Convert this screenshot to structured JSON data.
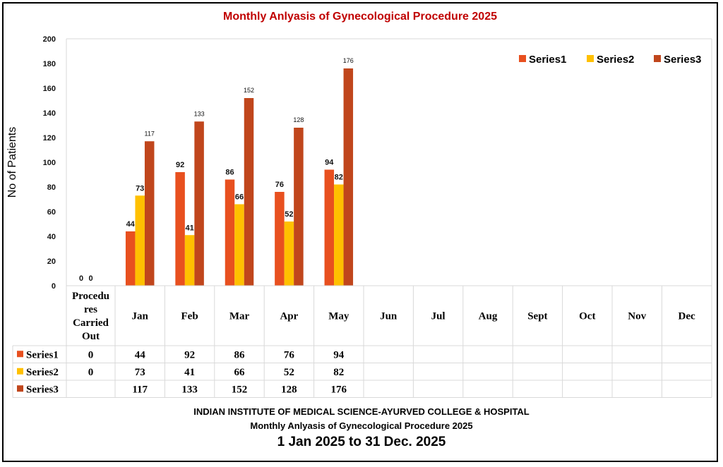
{
  "chart_data": {
    "type": "bar",
    "title": "Monthly Anlyasis of Gynecological Procedure  2025",
    "ylabel": "No of Patients",
    "ylim": [
      0,
      200
    ],
    "yticks": [
      "0",
      "20",
      "40",
      "60",
      "80",
      "100",
      "120",
      "140",
      "160",
      "180",
      "200"
    ],
    "legend_position": "top-right",
    "categories": [
      "Procedu\nres\nCarried\nOut",
      "Jan",
      "Feb",
      "Mar",
      "Apr",
      "May",
      "Jun",
      "Jul",
      "Aug",
      "Sept",
      "Oct",
      "Nov",
      "Dec"
    ],
    "series": [
      {
        "name": "Series1",
        "color": "#e8501f",
        "values": [
          0,
          44,
          92,
          86,
          76,
          94,
          null,
          null,
          null,
          null,
          null,
          null,
          null
        ]
      },
      {
        "name": "Series2",
        "color": "#ffc000",
        "values": [
          0,
          73,
          41,
          66,
          52,
          82,
          null,
          null,
          null,
          null,
          null,
          null,
          null
        ]
      },
      {
        "name": "Series3",
        "color": "#c0461c",
        "values": [
          null,
          117,
          133,
          152,
          128,
          176,
          null,
          null,
          null,
          null,
          null,
          null,
          null
        ]
      }
    ]
  },
  "footer": {
    "line1": "INDIAN INSTITUTE OF MEDICAL SCIENCE-AYURVED COLLEGE & HOSPITAL",
    "line2": "Monthly Anlyasis of Gynecological Procedure  2025",
    "line3": "1 Jan 2025 to 31 Dec. 2025"
  }
}
